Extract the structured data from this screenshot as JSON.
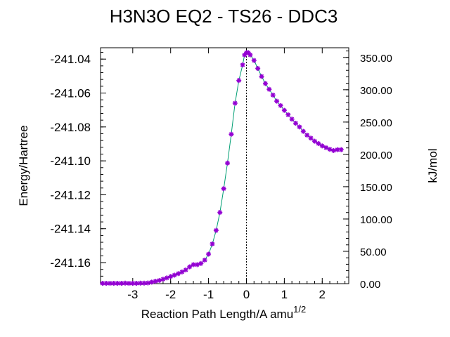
{
  "chart_data": {
    "type": "scatter",
    "title": "H3N3O   EQ2 - TS26 - DDC3",
    "xlabel": "Reaction Path Length/A amu",
    "xlabel_superscript": "1/2",
    "ylabel": "Energy/Hartree",
    "y2label": "kJ/mol",
    "xlim": [
      -3.85,
      2.7
    ],
    "ylim": [
      -241.1724,
      -241.0333
    ],
    "y2lim": [
      0,
      365
    ],
    "x_ticks": [
      -3,
      -2,
      -1,
      0,
      1,
      2
    ],
    "x_tick_labels": [
      "-3",
      "-2",
      "-1",
      "0",
      "1",
      "2"
    ],
    "y_ticks": [
      -241.04,
      -241.06,
      -241.08,
      -241.1,
      -241.12,
      -241.14,
      -241.16
    ],
    "y_tick_labels": [
      "-241.04",
      "-241.06",
      "-241.08",
      "-241.10",
      "-241.12",
      "-241.14",
      "-241.16"
    ],
    "y2_ticks": [
      0,
      50,
      100,
      150,
      200,
      250,
      300,
      350
    ],
    "y2_tick_labels": [
      "0.00",
      "50.00",
      "100.00",
      "150.00",
      "200.00",
      "250.00",
      "300.00",
      "350.00"
    ],
    "ts_marker_x": 0,
    "grid": false,
    "colors": {
      "line": "#009e73",
      "marker": "#9400d3"
    },
    "series": [
      {
        "x": [
          -3.8,
          -3.7,
          -3.6,
          -3.5,
          -3.4,
          -3.3,
          -3.2,
          -3.1,
          -3.0,
          -2.9,
          -2.8,
          -2.7,
          -2.6,
          -2.5,
          -2.4,
          -2.3,
          -2.2,
          -2.1,
          -2.0,
          -1.9,
          -1.8,
          -1.7,
          -1.6,
          -1.5,
          -1.4,
          -1.3,
          -1.2,
          -1.1,
          -1.0,
          -0.9,
          -0.8,
          -0.7,
          -0.6,
          -0.5,
          -0.4,
          -0.3,
          -0.2,
          -0.1,
          -0.05,
          0.0,
          0.05,
          0.1,
          0.2,
          0.3,
          0.4,
          0.5,
          0.6,
          0.7,
          0.8,
          0.9,
          1.0,
          1.1,
          1.2,
          1.3,
          1.4,
          1.5,
          1.6,
          1.7,
          1.8,
          1.9,
          2.0,
          2.1,
          2.2,
          2.3,
          2.4,
          2.5
        ],
        "y": [
          -241.1722,
          -241.1722,
          -241.1722,
          -241.1722,
          -241.1722,
          -241.1722,
          -241.1721,
          -241.1722,
          -241.1722,
          -241.1722,
          -241.1721,
          -241.1721,
          -241.172,
          -241.1715,
          -241.171,
          -241.1705,
          -241.1698,
          -241.169,
          -241.1682,
          -241.1674,
          -241.1665,
          -241.1655,
          -241.1643,
          -241.1625,
          -241.1612,
          -241.1612,
          -241.1605,
          -241.1585,
          -241.155,
          -241.149,
          -241.141,
          -241.1304,
          -241.1164,
          -241.1013,
          -241.0843,
          -241.066,
          -241.0526,
          -241.0434,
          -241.0375,
          -241.0362,
          -241.0362,
          -241.0375,
          -241.0408,
          -241.0455,
          -241.0502,
          -241.0544,
          -241.0578,
          -241.0612,
          -241.0648,
          -241.0674,
          -241.0702,
          -241.0728,
          -241.0754,
          -241.0778,
          -241.08,
          -241.0826,
          -241.0848,
          -241.0866,
          -241.0884,
          -241.0898,
          -241.0912,
          -241.0922,
          -241.0932,
          -241.0939,
          -241.0934,
          -241.0934
        ]
      }
    ]
  }
}
